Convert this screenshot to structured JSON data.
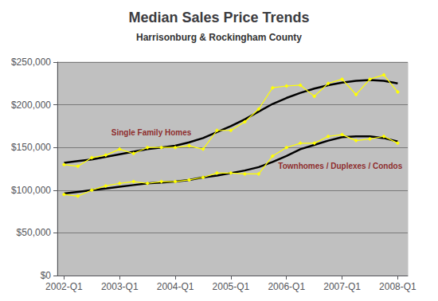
{
  "chart_data": {
    "type": "line",
    "title": "Median Sales Price Trends",
    "subtitle": "Harrisonburg & Rockingham County",
    "x": [
      2002.0,
      2002.25,
      2002.5,
      2002.75,
      2003.0,
      2003.25,
      2003.5,
      2003.75,
      2004.0,
      2004.25,
      2004.5,
      2004.75,
      2005.0,
      2005.25,
      2005.5,
      2005.75,
      2006.0,
      2006.25,
      2006.5,
      2006.75,
      2007.0,
      2007.25,
      2007.5,
      2007.75,
      2008.0
    ],
    "xlim": [
      2001.88,
      2008.18
    ],
    "xticks": [
      {
        "value": 2002,
        "label": "2002-Q1"
      },
      {
        "value": 2003,
        "label": "2003-Q1"
      },
      {
        "value": 2004,
        "label": "2004-Q1"
      },
      {
        "value": 2005,
        "label": "2005-Q1"
      },
      {
        "value": 2006,
        "label": "2006-Q1"
      },
      {
        "value": 2007,
        "label": "2007-Q1"
      },
      {
        "value": 2008,
        "label": "2008-Q1"
      }
    ],
    "ylim": [
      0,
      250000
    ],
    "yticks": [
      {
        "value": 0,
        "label": "$0"
      },
      {
        "value": 50000,
        "label": "$50,000"
      },
      {
        "value": 100000,
        "label": "$100,000"
      },
      {
        "value": 150000,
        "label": "$150,000"
      },
      {
        "value": 200000,
        "label": "$200,000"
      },
      {
        "value": 250000,
        "label": "$250,000"
      }
    ],
    "grid": true,
    "series": [
      {
        "color": "#000000",
        "marker": "none",
        "values": [
          132000,
          134000,
          136000,
          139000,
          142000,
          145000,
          148000,
          150000,
          152000,
          156000,
          161000,
          168000,
          175000,
          183000,
          192000,
          201000,
          208000,
          214000,
          219000,
          223000,
          226000,
          228000,
          229000,
          228000,
          225000
        ]
      },
      {
        "color": "#000000",
        "marker": "none",
        "values": [
          96000,
          98000,
          100000,
          102000,
          104000,
          106000,
          108000,
          109000,
          110000,
          112000,
          115000,
          117000,
          120000,
          123000,
          127000,
          133000,
          140000,
          148000,
          153000,
          158000,
          162000,
          163000,
          163000,
          161000,
          157000
        ]
      },
      {
        "color": "#ffff00",
        "marker": "diamond",
        "values": [
          130000,
          128000,
          138000,
          141000,
          148000,
          143000,
          150000,
          150000,
          150000,
          152000,
          148000,
          170000,
          170000,
          180000,
          195000,
          220000,
          222000,
          223000,
          210000,
          225000,
          230000,
          212000,
          230000,
          235000,
          215000
        ]
      },
      {
        "color": "#ffff00",
        "marker": "diamond",
        "values": [
          95000,
          93000,
          100000,
          105000,
          108000,
          110000,
          108000,
          110000,
          110000,
          112000,
          115000,
          120000,
          120000,
          119000,
          119000,
          140000,
          150000,
          155000,
          155000,
          163000,
          165000,
          158000,
          160000,
          163000,
          155000
        ]
      }
    ],
    "annotations": [
      {
        "text": "Single Family Homes",
        "x": 2002.85,
        "y": 163000,
        "color": "#800000"
      },
      {
        "text": "Townhomes / Duplexes / Condos",
        "x": 2005.85,
        "y": 124000,
        "color": "#800000"
      }
    ]
  }
}
